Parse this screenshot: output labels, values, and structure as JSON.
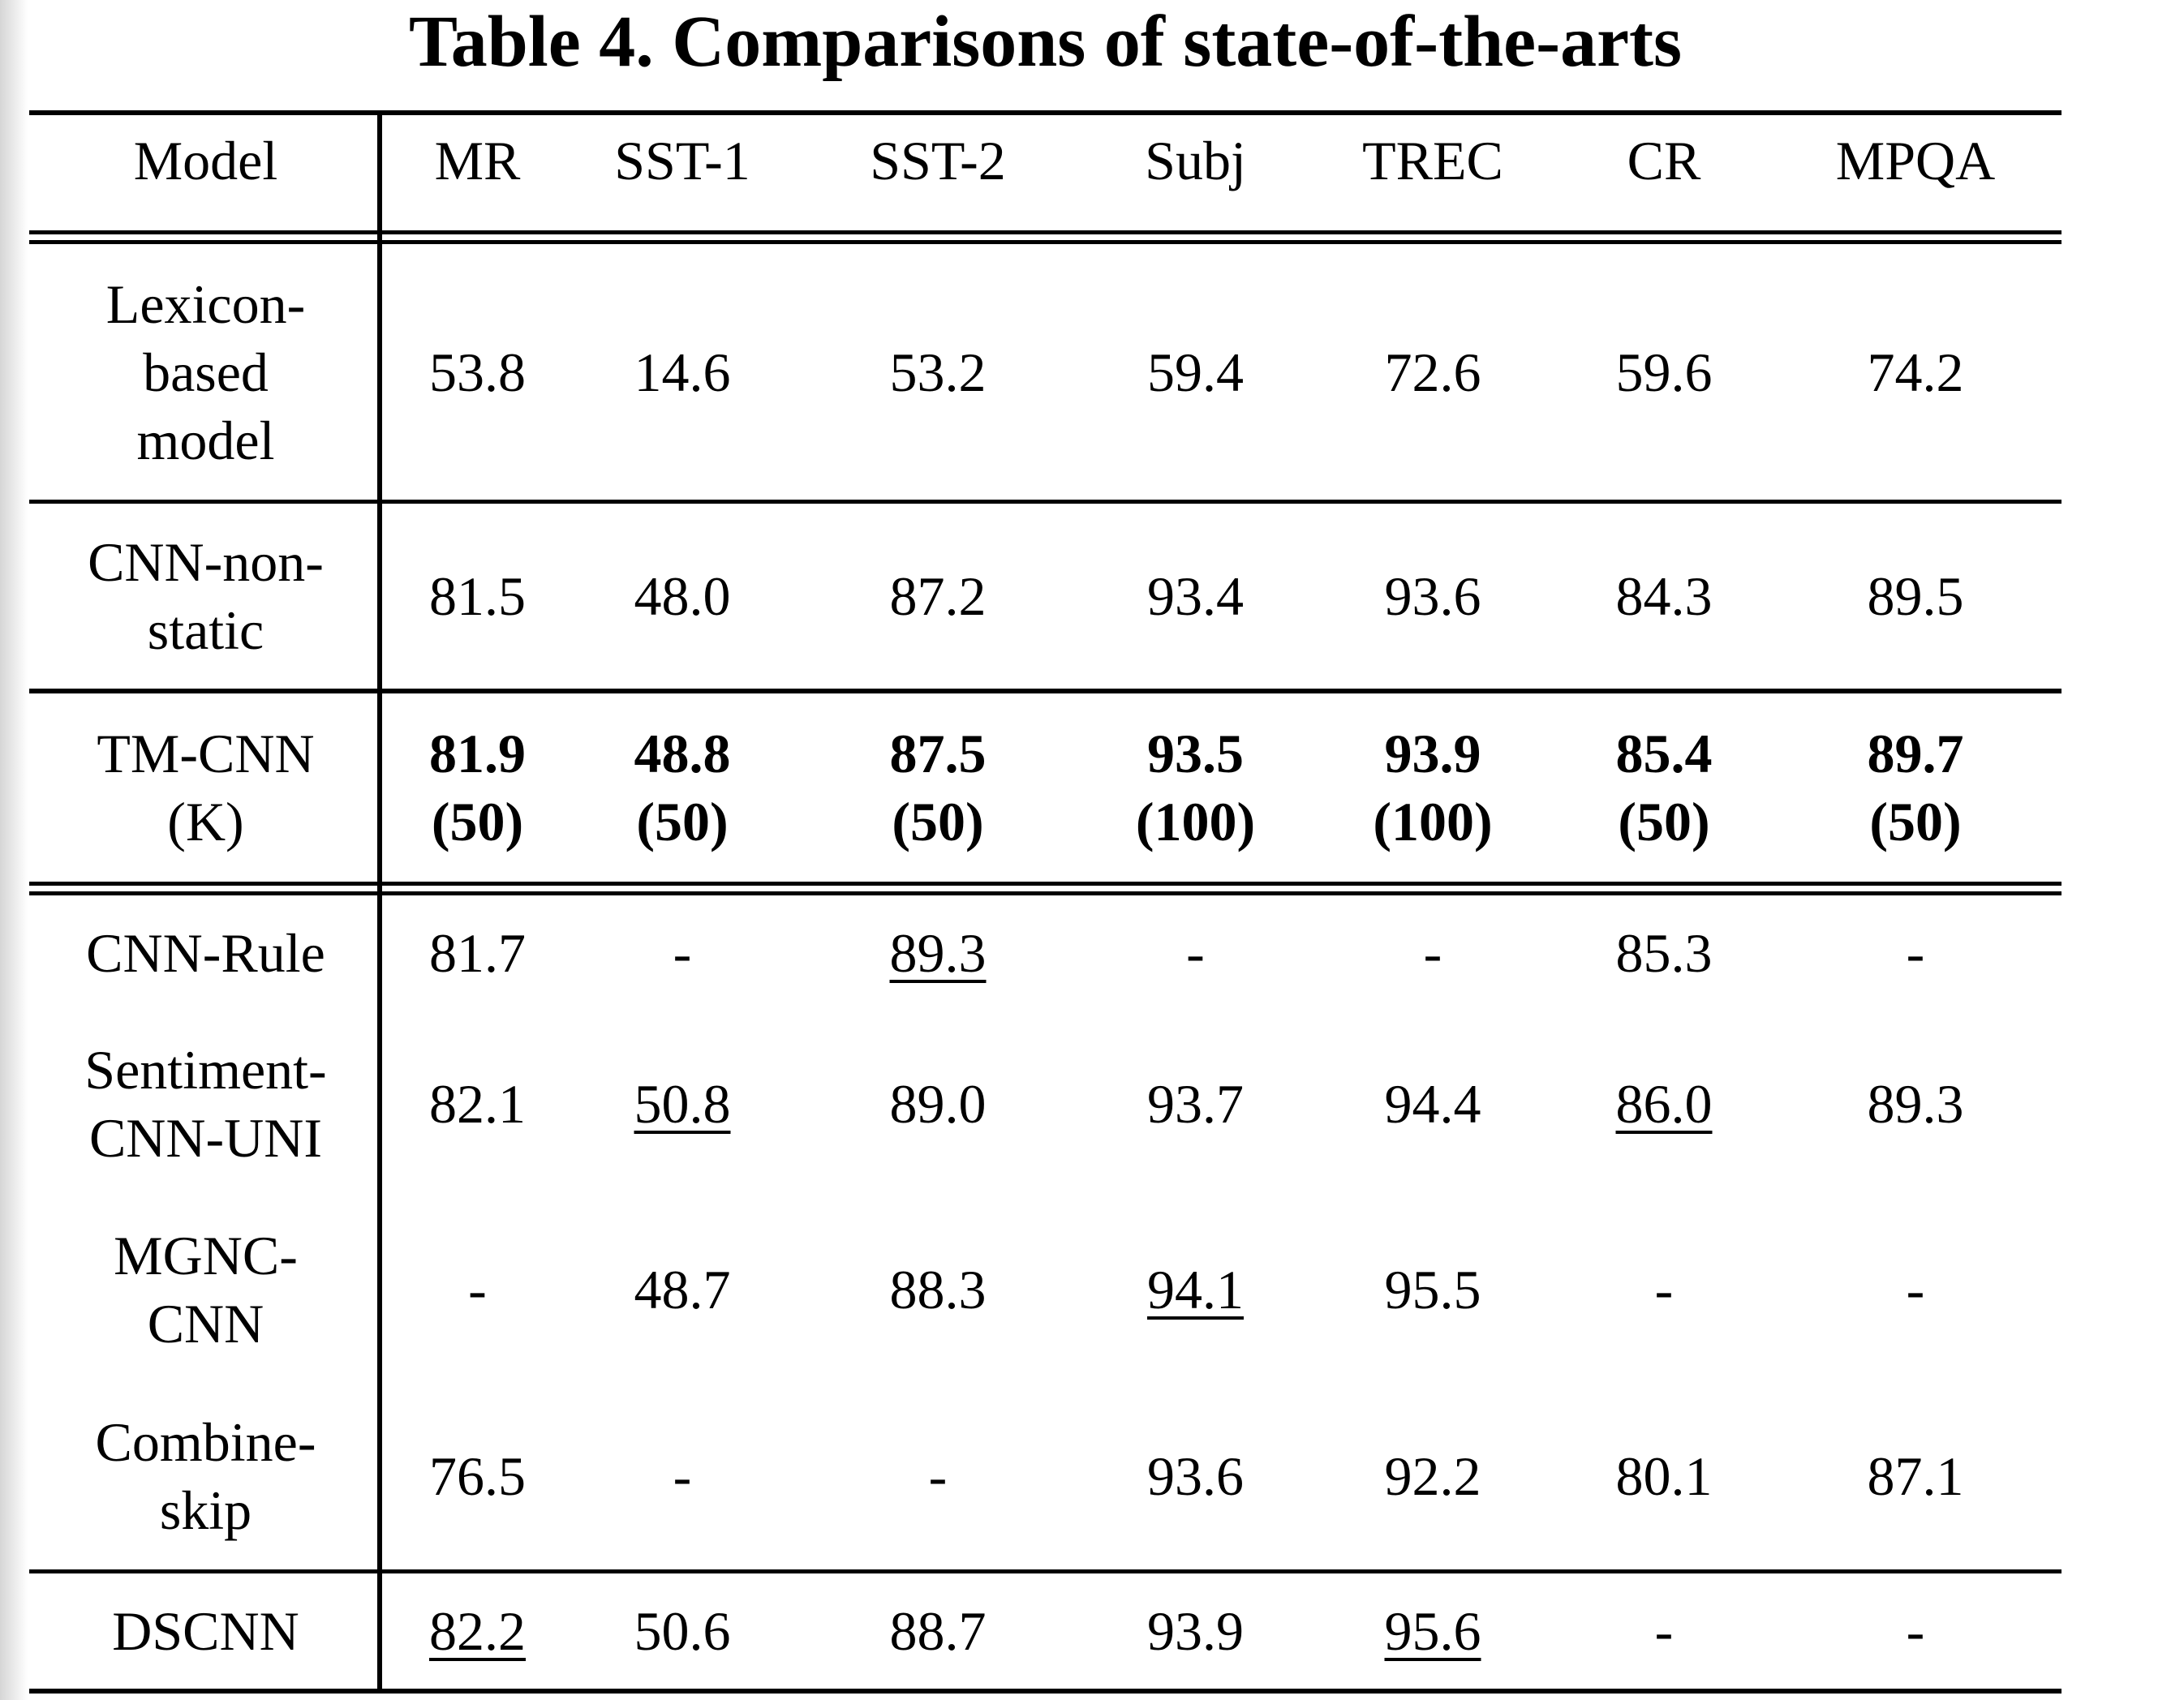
{
  "caption": "Table 4. Comparisons of state-of-the-arts",
  "columns": [
    "Model",
    "MR",
    "SST-1",
    "SST-2",
    "Subj",
    "TREC",
    "CR",
    "MPQA"
  ],
  "rows": [
    {
      "model": [
        "Lexicon-",
        "based",
        "model"
      ],
      "values": [
        "53.8",
        "14.6",
        "53.2",
        "59.4",
        "72.6",
        "59.6",
        "74.2"
      ]
    },
    {
      "model": [
        "CNN-non-",
        "static"
      ],
      "values": [
        "81.5",
        "48.0",
        "87.2",
        "93.4",
        "93.6",
        "84.3",
        "89.5"
      ]
    },
    {
      "model": [
        "TM-CNN",
        "(K)"
      ],
      "values": [
        "81.9",
        "48.8",
        "87.5",
        "93.5",
        "93.9",
        "85.4",
        "89.7"
      ],
      "k_values": [
        "(50)",
        "(50)",
        "(50)",
        "(100)",
        "(100)",
        "(50)",
        "(50)"
      ]
    },
    {
      "model": [
        "CNN-Rule"
      ],
      "values": [
        "81.7",
        "-",
        "89.3",
        "-",
        "-",
        "85.3",
        "-"
      ]
    },
    {
      "model": [
        "Sentiment-",
        "CNN-UNI"
      ],
      "values": [
        "82.1",
        "50.8",
        "89.0",
        "93.7",
        "94.4",
        "86.0",
        "89.3"
      ]
    },
    {
      "model": [
        "MGNC-",
        "CNN"
      ],
      "values": [
        "-",
        "48.7",
        "88.3",
        "94.1",
        "95.5",
        "-",
        "-"
      ]
    },
    {
      "model": [
        "Combine-",
        "skip"
      ],
      "values": [
        "76.5",
        "-",
        "-",
        "93.6",
        "92.2",
        "80.1",
        "87.1"
      ]
    },
    {
      "model": [
        "DSCNN"
      ],
      "values": [
        "82.2",
        "50.6",
        "88.7",
        "93.9",
        "95.6",
        "-",
        "-"
      ]
    }
  ]
}
